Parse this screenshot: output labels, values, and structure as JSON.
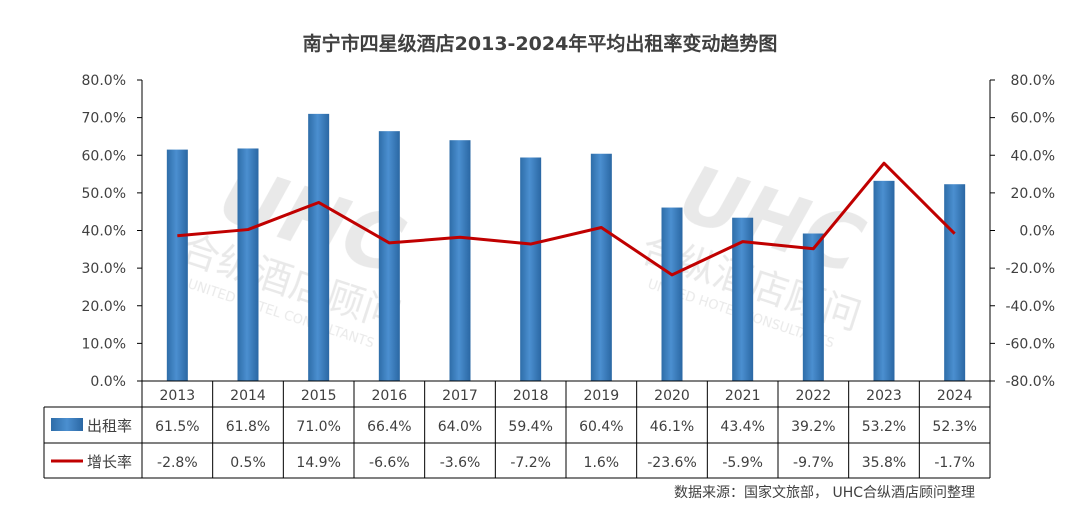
{
  "chart_data": {
    "type": "bar",
    "title": "南宁市四星级酒店2013-2024年平均出租率变动趋势图",
    "categories": [
      "2013",
      "2014",
      "2015",
      "2016",
      "2017",
      "2018",
      "2019",
      "2020",
      "2021",
      "2022",
      "2023",
      "2024"
    ],
    "series": [
      {
        "name": "出租率",
        "type": "bar",
        "axis": "left",
        "values": [
          61.5,
          61.8,
          71.0,
          66.4,
          64.0,
          59.4,
          60.4,
          46.1,
          43.4,
          39.2,
          53.2,
          52.3
        ],
        "labels": [
          "61.5%",
          "61.8%",
          "71.0%",
          "66.4%",
          "64.0%",
          "59.4%",
          "60.4%",
          "46.1%",
          "43.4%",
          "39.2%",
          "53.2%",
          "52.3%"
        ]
      },
      {
        "name": "增长率",
        "type": "line",
        "axis": "right",
        "values": [
          -2.8,
          0.5,
          14.9,
          -6.6,
          -3.6,
          -7.2,
          1.6,
          -23.6,
          -5.9,
          -9.7,
          35.8,
          -1.7
        ],
        "labels": [
          "-2.8%",
          "0.5%",
          "14.9%",
          "-6.6%",
          "-3.6%",
          "-7.2%",
          "1.6%",
          "-23.6%",
          "-5.9%",
          "-9.7%",
          "35.8%",
          "-1.7%"
        ]
      }
    ],
    "y_left": {
      "ylim": [
        0,
        80
      ],
      "ticks": [
        "0.0%",
        "10.0%",
        "20.0%",
        "30.0%",
        "40.0%",
        "50.0%",
        "60.0%",
        "70.0%",
        "80.0%"
      ]
    },
    "y_right": {
      "ylim": [
        -80,
        80
      ],
      "ticks": [
        "-80.0%",
        "-60.0%",
        "-40.0%",
        "-20.0%",
        "0.0%",
        "20.0%",
        "40.0%",
        "60.0%",
        "80.0%"
      ]
    },
    "data_table": true,
    "grid": false,
    "colors": {
      "bar": "#2e75b6",
      "bar_light": "#5b9bd5",
      "line": "#c00000",
      "axis": "#000000",
      "text": "#404040"
    }
  },
  "source_note": "数据来源：国家文旅部， UHC合纵酒店顾问整理",
  "watermark": {
    "logo_text": "UHC",
    "cn_text": "合纵酒店顾问",
    "en_text": "UNITED HOTEL CONSULTANTS"
  }
}
